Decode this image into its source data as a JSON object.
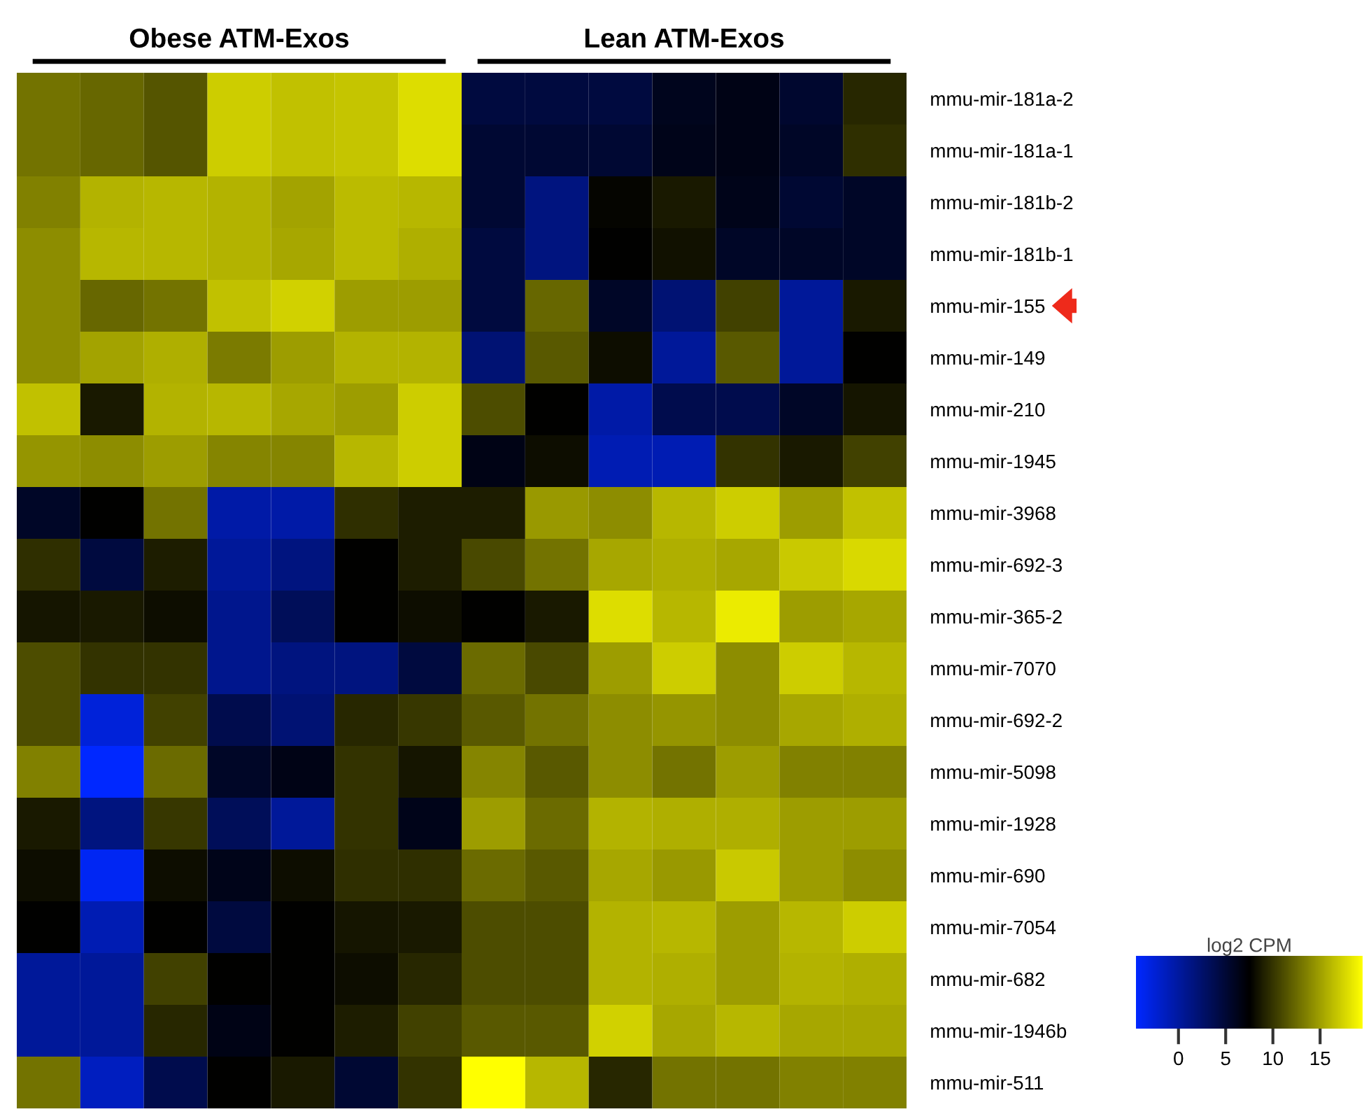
{
  "chart_data": {
    "type": "heatmap",
    "annotations": [
      "Obese ATM-Exos",
      "Lean ATM-Exos"
    ],
    "clabel": "log2 CPM",
    "categories": [
      null,
      null,
      null,
      null,
      null,
      null,
      null,
      null,
      null,
      null,
      null,
      null,
      null,
      null
    ],
    "y_categories": [
      "mmu-mir-181a-2",
      "mmu-mir-181a-1",
      "mmu-mir-181b-2",
      "mmu-mir-181b-1",
      "mmu-mir-155",
      "mmu-mir-149",
      "mmu-mir-210",
      "mmu-mir-1945",
      "mmu-mir-3968",
      "mmu-mir-692-3",
      "mmu-mir-365-2",
      "mmu-mir-7070",
      "mmu-mir-692-2",
      "mmu-mir-5098",
      "mmu-mir-1928",
      "mmu-mir-690",
      "mmu-mir-7054",
      "mmu-mir-682",
      "mmu-mir-1946b",
      "mmu-mir-511"
    ],
    "cells": [
      [
        12.9,
        12.3,
        11.5,
        17.1,
        16.5,
        16.7,
        17.9,
        4.5,
        4.5,
        4.5,
        6.1,
        6.5,
        5.3,
        9.3
      ],
      [
        12.9,
        12.3,
        11.5,
        17.1,
        16.5,
        16.7,
        17.9,
        5.1,
        5.1,
        5.1,
        6.3,
        6.5,
        5.7,
        9.7
      ],
      [
        13.5,
        15.9,
        16.1,
        15.9,
        15.1,
        16.3,
        16.1,
        5.1,
        1.5,
        7.7,
        8.7,
        6.3,
        5.1,
        5.7
      ],
      [
        14.1,
        16.1,
        16.1,
        15.9,
        15.3,
        16.3,
        15.7,
        4.5,
        1.5,
        7.5,
        8.3,
        5.7,
        5.7,
        5.7
      ],
      [
        14.1,
        12.3,
        12.9,
        16.5,
        17.3,
        14.9,
        14.9,
        4.5,
        12.3,
        5.7,
        2.1,
        10.5,
        0.3,
        8.7
      ],
      [
        14.1,
        15.1,
        15.7,
        13.3,
        14.9,
        15.9,
        15.9,
        2.1,
        11.7,
        8.1,
        0.3,
        11.7,
        0.3,
        7.5
      ],
      [
        16.5,
        8.7,
        15.9,
        16.1,
        15.3,
        14.9,
        17.1,
        11.1,
        7.5,
        -0.3,
        3.9,
        3.9,
        5.7,
        8.5
      ],
      [
        14.5,
        14.1,
        14.9,
        13.7,
        13.7,
        16.1,
        17.1,
        6.5,
        8.1,
        -0.9,
        -0.9,
        9.9,
        8.7,
        10.5
      ],
      [
        5.7,
        7.5,
        12.9,
        -0.3,
        -0.3,
        9.7,
        8.9,
        8.9,
        14.7,
        14.1,
        16.1,
        17.1,
        14.9,
        16.5
      ],
      [
        9.7,
        4.5,
        8.9,
        0.3,
        1.5,
        7.5,
        8.9,
        10.9,
        12.9,
        15.3,
        15.7,
        15.3,
        16.9,
        17.7
      ],
      [
        8.5,
        8.7,
        8.1,
        0.9,
        3.3,
        7.5,
        8.1,
        7.5,
        8.7,
        17.9,
        16.1,
        18.5,
        14.9,
        15.3
      ],
      [
        11.1,
        9.9,
        9.9,
        0.9,
        1.5,
        1.5,
        4.5,
        12.5,
        10.9,
        14.9,
        17.1,
        14.1,
        17.1,
        16.1
      ],
      [
        11.1,
        -2.7,
        10.5,
        3.9,
        2.1,
        9.3,
        10.1,
        11.7,
        12.9,
        14.1,
        14.5,
        14.1,
        15.3,
        15.7
      ],
      [
        13.5,
        -4.5,
        12.5,
        5.7,
        6.5,
        9.9,
        8.5,
        13.7,
        11.7,
        14.1,
        12.9,
        14.9,
        13.5,
        13.5
      ],
      [
        8.7,
        1.5,
        10.1,
        3.3,
        0.3,
        9.9,
        6.3,
        14.9,
        12.5,
        15.9,
        15.7,
        15.7,
        14.9,
        14.9
      ],
      [
        8.1,
        -3.9,
        8.1,
        6.3,
        8.1,
        9.7,
        9.7,
        12.5,
        11.7,
        15.3,
        14.7,
        16.9,
        14.9,
        14.1
      ],
      [
        7.5,
        -0.9,
        7.5,
        4.5,
        7.5,
        8.5,
        8.7,
        11.1,
        11.1,
        15.9,
        16.1,
        14.9,
        16.1,
        17.1
      ],
      [
        0.3,
        0.3,
        10.5,
        7.5,
        7.5,
        8.1,
        9.3,
        11.1,
        11.1,
        15.9,
        15.7,
        14.9,
        15.9,
        15.7
      ],
      [
        0.3,
        0.3,
        9.3,
        6.5,
        7.5,
        8.9,
        10.5,
        11.7,
        11.7,
        17.3,
        15.3,
        16.1,
        15.3,
        15.3
      ],
      [
        12.9,
        -1.5,
        3.9,
        7.5,
        8.7,
        5.1,
        9.9,
        19.5,
        16.1,
        9.3,
        12.9,
        12.9,
        13.5,
        13.5
      ]
    ],
    "clim": [
      -4.5,
      19.5
    ],
    "cticks": [
      0,
      5,
      10,
      15
    ]
  }
}
